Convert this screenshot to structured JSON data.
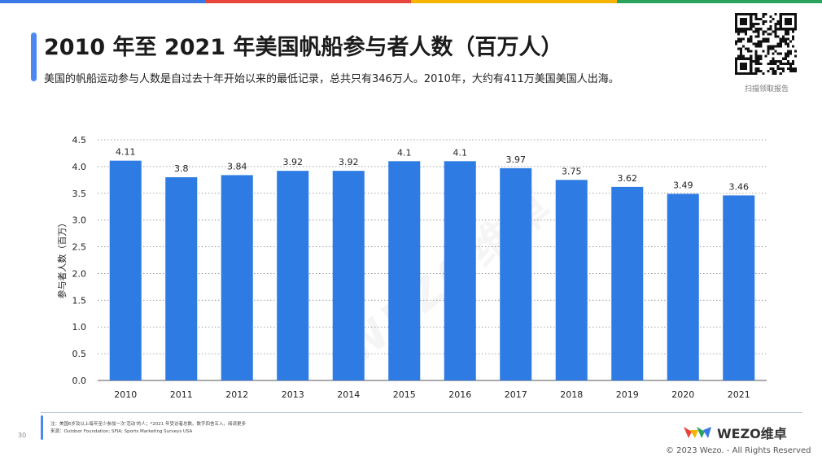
{
  "title": "2010 年至 2021 年美国帆船参与者人数（百万人）",
  "subtitle": "美国的帆船运动参与人数是自过去十年开始以来的最低记录，总共只有346万人。2010年，大约有411万美国美国人出海。",
  "qr_caption": "扫描领取报告",
  "footer": {
    "note": "注：美国6岁及以上每年至少参加一次‘活动’的人；*2021 年受访者总数。数字四舍五入，阅读更多",
    "source": "来源：Outdoor Foundation; SFIA; Sports Marketing Surveys USA",
    "page_number": "30",
    "logo_text": "WEZO维卓",
    "copyright": "© 2023 Wezo. - All Rights Reserved",
    "watermark": "WEZO维卓"
  },
  "colors": {
    "bar": "#2e7be4",
    "accent": "#4a8af0",
    "grid": "#8a8a8a",
    "topstrip": [
      "#3b78e7",
      "#e8453c",
      "#f6b400",
      "#2aa45c"
    ]
  },
  "chart_data": {
    "type": "bar",
    "title": "",
    "xlabel": "",
    "ylabel": "参与者人数（百万）",
    "categories": [
      "2010",
      "2011",
      "2012",
      "2013",
      "2014",
      "2015",
      "2016",
      "2017",
      "2018",
      "2019",
      "2020",
      "2021"
    ],
    "values": [
      4.11,
      3.8,
      3.84,
      3.92,
      3.92,
      4.1,
      4.1,
      3.97,
      3.75,
      3.62,
      3.49,
      3.46
    ],
    "value_labels": [
      "4.11",
      "3.8",
      "3.84",
      "3.92",
      "3.92",
      "4.1",
      "4.1",
      "3.97",
      "3.75",
      "3.62",
      "3.49",
      "3.46"
    ],
    "ylim": [
      0,
      4.5
    ],
    "yticks": [
      "0.0",
      "0.5",
      "1.0",
      "1.5",
      "2.0",
      "2.5",
      "3.0",
      "3.5",
      "4.0",
      "4.5"
    ],
    "grid": true,
    "legend": "none"
  }
}
